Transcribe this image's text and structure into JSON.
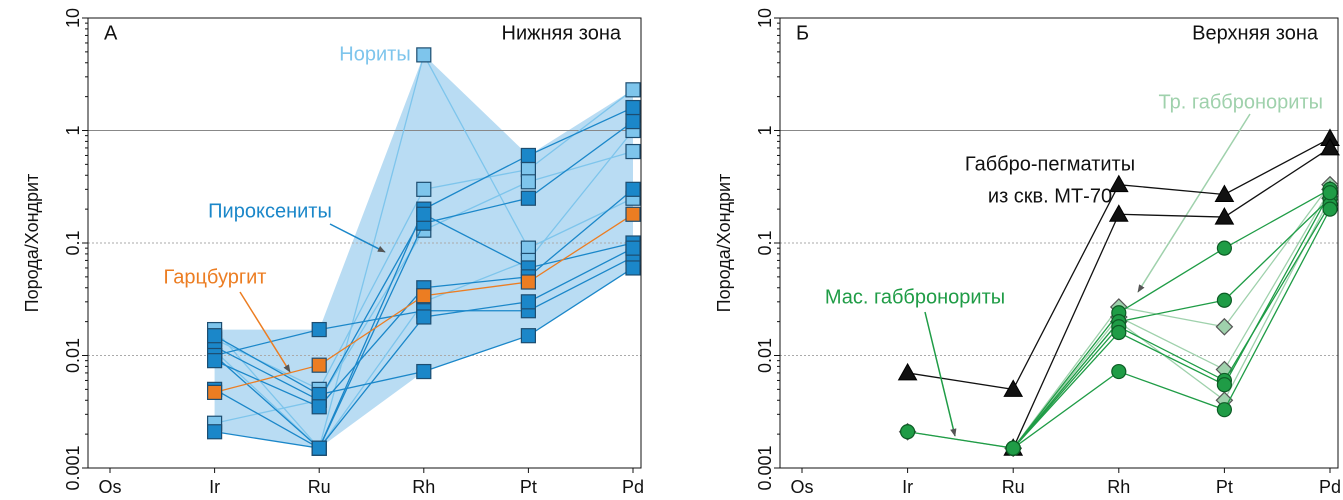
{
  "chart_data": [
    {
      "type": "line",
      "log_y": true,
      "panel_letter": "А",
      "title": "Нижняя зона",
      "ylabel": "Порода/Хондрит",
      "categories": [
        "Os",
        "Ir",
        "Ru",
        "Rh",
        "Pt",
        "Pd"
      ],
      "ylim": [
        0.001,
        10
      ],
      "yticks": [
        0.001,
        0.01,
        0.1,
        1,
        10
      ],
      "grid": true,
      "reference_line": 1,
      "envelope_color": "#b9dcf3",
      "groups": [
        {
          "name": "Нориты",
          "color": "#7ec5ec",
          "marker": "square",
          "in_envelope": true,
          "lines": [
            [
              null,
              0.017,
              0.0015,
              4.7,
              0.09,
              0.25
            ],
            [
              null,
              0.014,
              0.005,
              0.3,
              0.45,
              2.3
            ],
            [
              null,
              0.0025,
              0.004,
              0.13,
              0.35,
              0.65
            ],
            [
              null,
              0.011,
              0.0015,
              0.03,
              0.07,
              1.0
            ]
          ]
        },
        {
          "name": "Пироксениты",
          "color": "#1b87c9",
          "marker": "square",
          "in_envelope": true,
          "lines": [
            [
              null,
              0.0021,
              0.0015,
              0.2,
              0.6,
              1.6
            ],
            [
              null,
              0.01,
              0.0015,
              0.15,
              0.25,
              1.2
            ],
            [
              null,
              0.012,
              0.004,
              0.18,
              0.06,
              0.1
            ],
            [
              null,
              0.01,
              0.017,
              0.025,
              0.025,
              0.075
            ],
            [
              null,
              0.015,
              0.0045,
              0.0072,
              0.015,
              0.06
            ],
            [
              null,
              0.009,
              0.0035,
              0.04,
              0.05,
              0.3
            ],
            [
              null,
              0.005,
              0.0015,
              0.022,
              0.03,
              0.09
            ]
          ]
        },
        {
          "name": "Гарцбургит",
          "color": "#ec7d22",
          "marker": "square",
          "in_envelope": false,
          "lines": [
            [
              null,
              0.0047,
              0.0082,
              0.034,
              0.045,
              0.18
            ]
          ]
        }
      ]
    },
    {
      "type": "line",
      "log_y": true,
      "panel_letter": "Б",
      "title": "Верхняя зона",
      "ylabel": "Порода/Хондрит",
      "categories": [
        "Os",
        "Ir",
        "Ru",
        "Rh",
        "Pt",
        "Pd"
      ],
      "ylim": [
        0.001,
        10
      ],
      "yticks": [
        0.001,
        0.01,
        0.1,
        1,
        10
      ],
      "grid": true,
      "reference_line": 1,
      "groups": [
        {
          "name": "Тр. габбронориты",
          "color": "#9fd1ac",
          "marker": "diamond",
          "lines": [
            [
              null,
              0.0021,
              0.0015,
              0.027,
              0.018,
              0.33
            ],
            [
              null,
              null,
              0.0015,
              0.022,
              0.0075,
              0.3
            ],
            [
              null,
              null,
              0.0015,
              0.02,
              0.004,
              0.25
            ]
          ]
        },
        {
          "name": [
            "Габбро-пегматиты",
            "из скв. МТ-70"
          ],
          "color": "#111111",
          "marker": "triangle",
          "lines": [
            [
              null,
              0.007,
              0.005,
              0.33,
              0.27,
              0.85
            ],
            [
              null,
              null,
              0.0015,
              0.18,
              0.17,
              0.7
            ]
          ]
        },
        {
          "name": "Мас. габбронориты",
          "color": "#1f9c46",
          "marker": "circle",
          "lines": [
            [
              null,
              0.0021,
              0.0015,
              0.024,
              0.09,
              0.3
            ],
            [
              null,
              null,
              0.0015,
              0.02,
              0.031,
              0.25
            ],
            [
              null,
              null,
              0.0015,
              0.018,
              0.006,
              0.22
            ],
            [
              null,
              null,
              0.0015,
              0.0072,
              0.0033,
              0.2
            ],
            [
              null,
              null,
              0.0015,
              0.016,
              0.0055,
              0.28
            ]
          ]
        }
      ]
    }
  ]
}
